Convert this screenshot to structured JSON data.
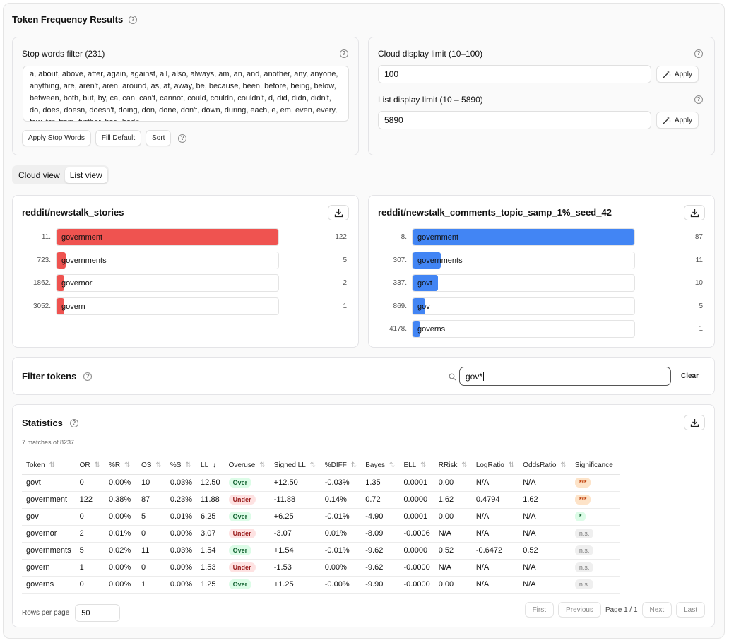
{
  "page": {
    "title": "Token Frequency Results"
  },
  "stop_words": {
    "label": "Stop words filter (231)",
    "text": "a, about, above, after, again, against, all, also, always, am, an, and, another, any, anyone, anything, are, aren't, aren, around, as, at, away, be, because, been, before, being, below, between, both, but, by, ca, can, can't, cannot, could, couldn, couldn't, d, did, didn, didn't, do, does, doesn, doesn't, doing, don, done, don't, down, during, each, e, em, even, every, few, for, from, further, had, hadn",
    "apply_label": "Apply Stop Words",
    "fill_default_label": "Fill Default",
    "sort_label": "Sort"
  },
  "limits": {
    "cloud_label": "Cloud display limit (10–100)",
    "cloud_value": "100",
    "list_label": "List display limit (10 – 5890)",
    "list_value": "5890",
    "apply_label": "Apply"
  },
  "view_toggle": {
    "cloud": "Cloud view",
    "list": "List view",
    "active": "list"
  },
  "corpora": [
    {
      "name": "reddit/newstalk_stories",
      "color": "#ef5350",
      "items": [
        {
          "rank": "11.",
          "token": "government",
          "count": "122",
          "fill": 1.0
        },
        {
          "rank": "723.",
          "token": "governments",
          "count": "5",
          "fill": 0.04
        },
        {
          "rank": "1862.",
          "token": "governor",
          "count": "2",
          "fill": 0.016
        },
        {
          "rank": "3052.",
          "token": "govern",
          "count": "1",
          "fill": 0.008
        }
      ]
    },
    {
      "name": "reddit/newstalk_comments_topic_samp_1%_seed_42",
      "color": "#4285f4",
      "items": [
        {
          "rank": "8.",
          "token": "government",
          "count": "87",
          "fill": 1.0
        },
        {
          "rank": "307.",
          "token": "governments",
          "count": "11",
          "fill": 0.126
        },
        {
          "rank": "337.",
          "token": "govt",
          "count": "10",
          "fill": 0.115
        },
        {
          "rank": "869.",
          "token": "gov",
          "count": "5",
          "fill": 0.057
        },
        {
          "rank": "4178.",
          "token": "governs",
          "count": "1",
          "fill": 0.011
        }
      ]
    }
  ],
  "filter": {
    "title": "Filter tokens",
    "value": "gov*",
    "clear_label": "Clear"
  },
  "statistics": {
    "title": "Statistics",
    "matches": "7 matches of 8237",
    "columns": [
      "Token",
      "OR",
      "%R",
      "OS",
      "%S",
      "LL",
      "Overuse",
      "Signed LL",
      "%DIFF",
      "Bayes",
      "ELL",
      "RRisk",
      "LogRatio",
      "OddsRatio",
      "Significance"
    ],
    "rows": [
      [
        "govt",
        "0",
        "0.00%",
        "10",
        "0.03%",
        "12.50",
        "Over",
        "+12.50",
        "-0.03%",
        "1.35",
        "0.0001",
        "0.00",
        "N/A",
        "N/A",
        "***"
      ],
      [
        "government",
        "122",
        "0.38%",
        "87",
        "0.23%",
        "11.88",
        "Under",
        "-11.88",
        "0.14%",
        "0.72",
        "0.0000",
        "1.62",
        "0.4794",
        "1.62",
        "***"
      ],
      [
        "gov",
        "0",
        "0.00%",
        "5",
        "0.01%",
        "6.25",
        "Over",
        "+6.25",
        "-0.01%",
        "-4.90",
        "0.0001",
        "0.00",
        "N/A",
        "N/A",
        "*"
      ],
      [
        "governor",
        "2",
        "0.01%",
        "0",
        "0.00%",
        "3.07",
        "Under",
        "-3.07",
        "0.01%",
        "-8.09",
        "-0.0006",
        "N/A",
        "N/A",
        "N/A",
        "n.s."
      ],
      [
        "governments",
        "5",
        "0.02%",
        "11",
        "0.03%",
        "1.54",
        "Over",
        "+1.54",
        "-0.01%",
        "-9.62",
        "0.0000",
        "0.52",
        "-0.6472",
        "0.52",
        "n.s."
      ],
      [
        "govern",
        "1",
        "0.00%",
        "0",
        "0.00%",
        "1.53",
        "Under",
        "-1.53",
        "0.00%",
        "-9.62",
        "-0.0000",
        "N/A",
        "N/A",
        "N/A",
        "n.s."
      ],
      [
        "governs",
        "0",
        "0.00%",
        "1",
        "0.00%",
        "1.25",
        "Over",
        "+1.25",
        "-0.00%",
        "-9.90",
        "-0.0000",
        "0.00",
        "N/A",
        "N/A",
        "n.s."
      ]
    ],
    "rows_per_page_label": "Rows per page",
    "rows_per_page": "50",
    "pagination": {
      "first": "First",
      "previous": "Previous",
      "page_info": "Page 1 / 1",
      "next": "Next",
      "last": "Last"
    }
  }
}
